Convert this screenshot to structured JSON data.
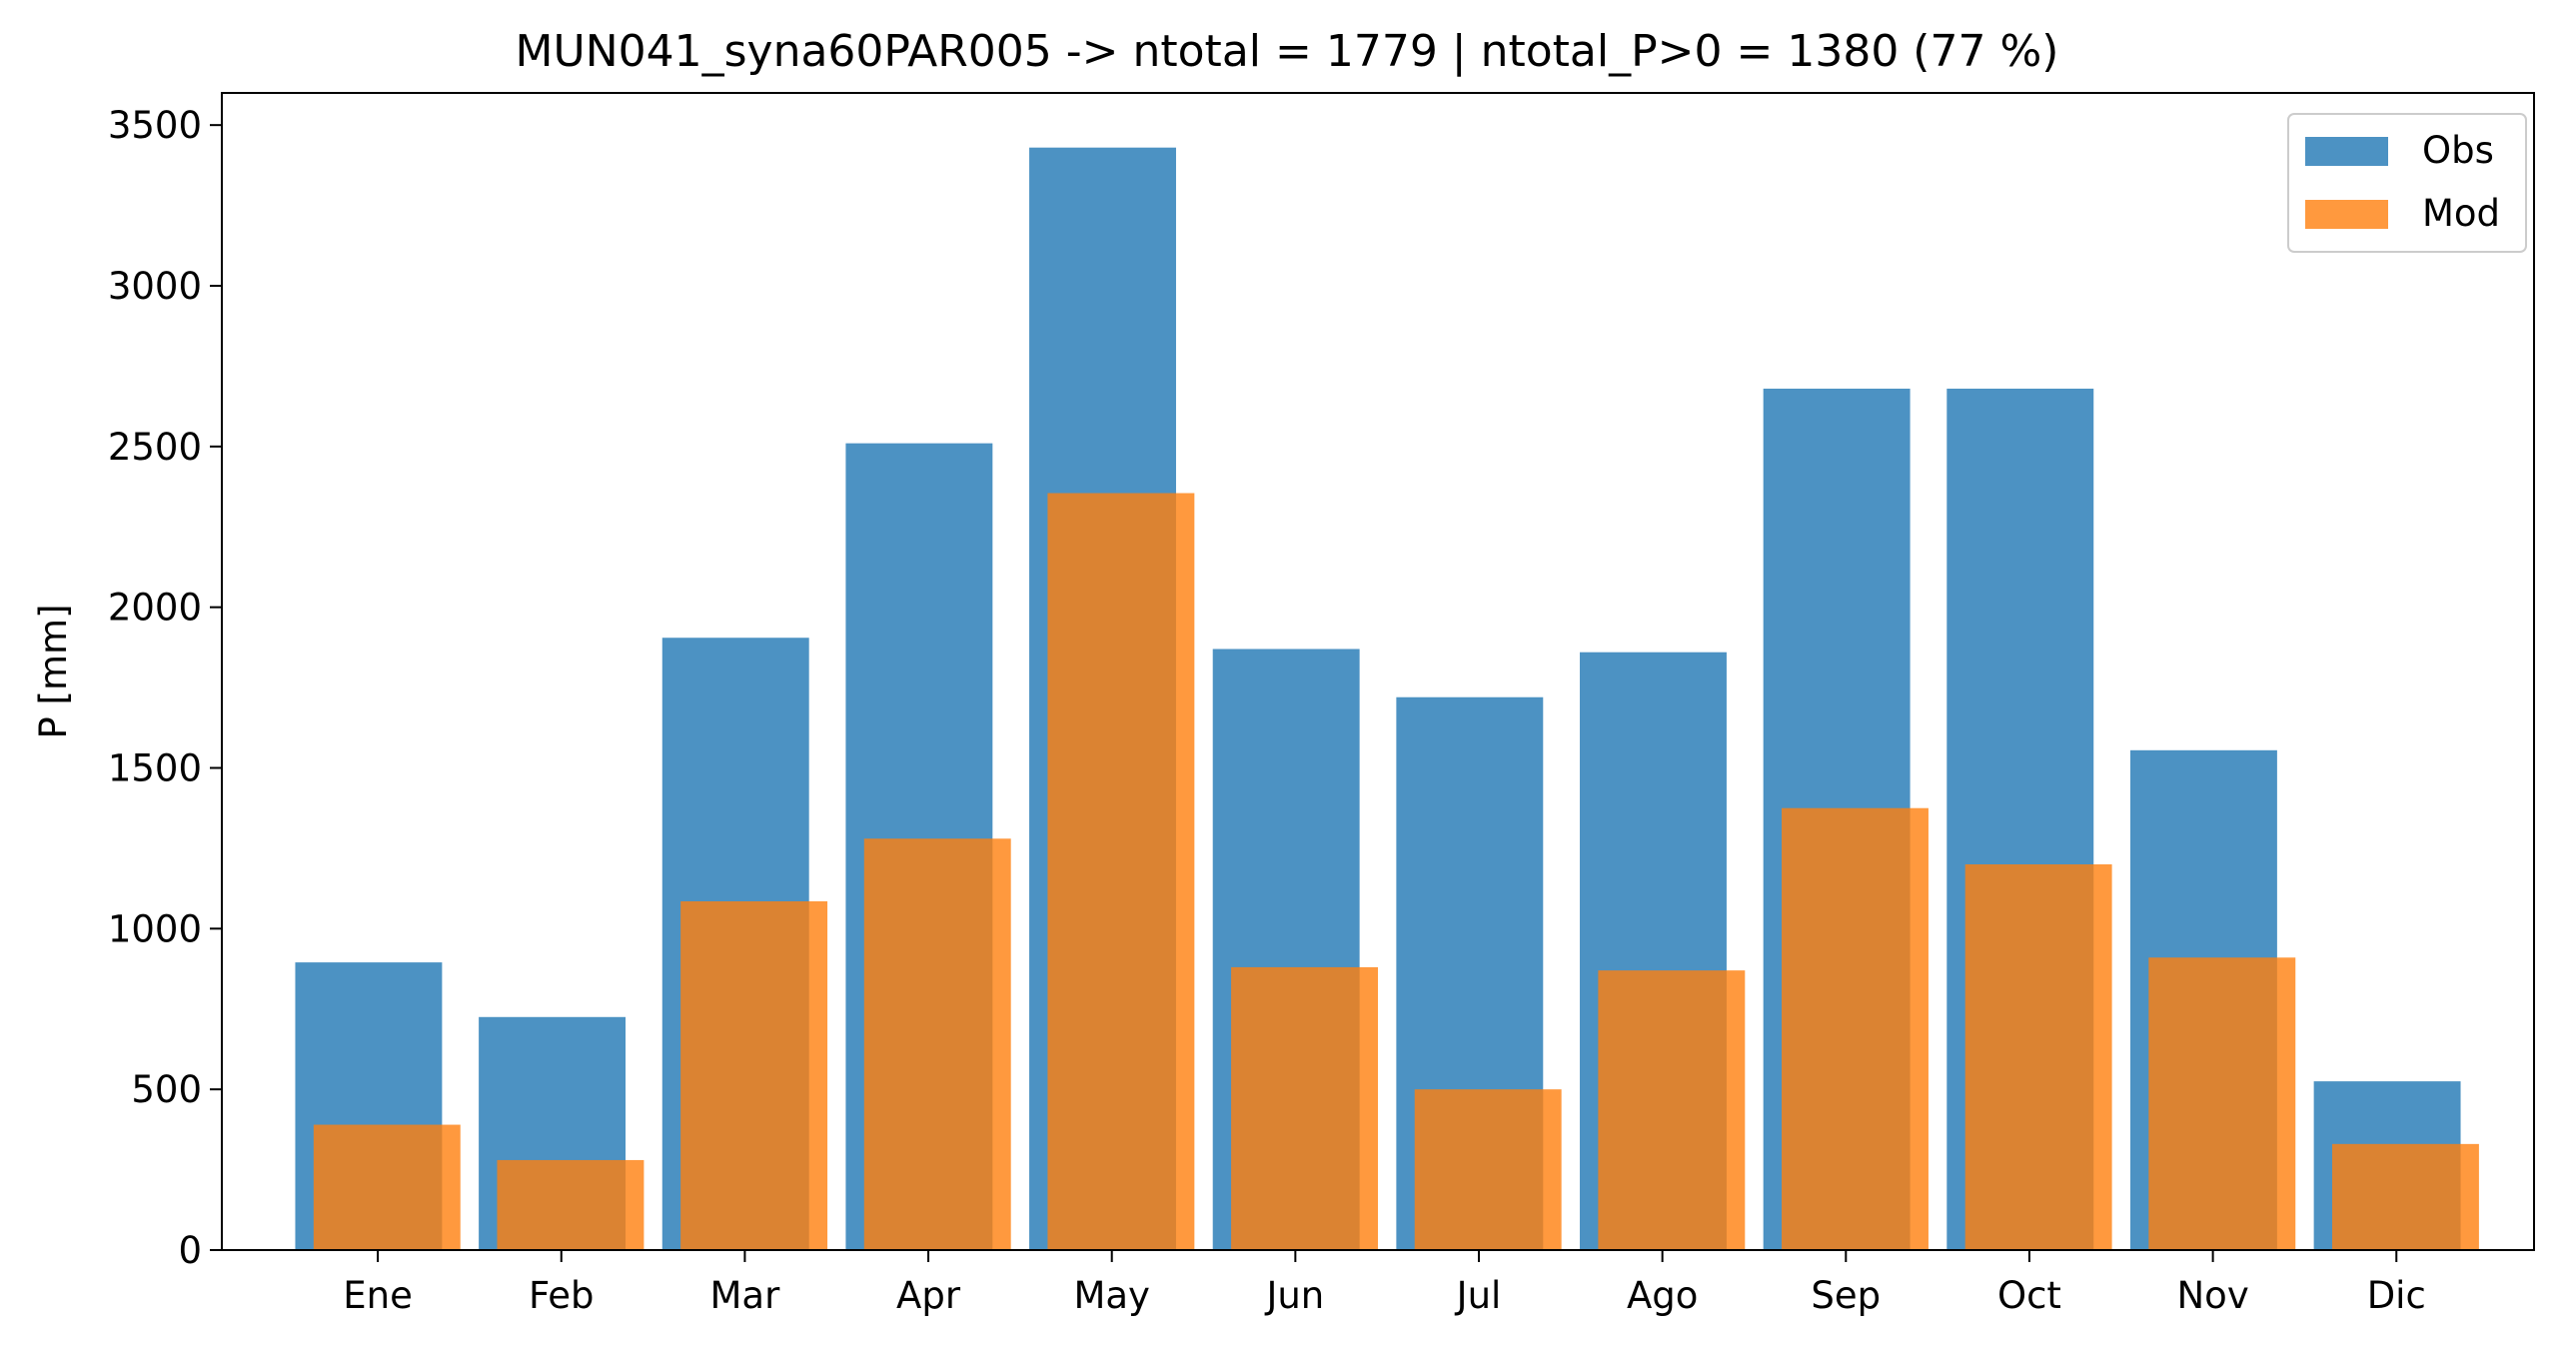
{
  "chart_data": {
    "type": "bar",
    "title": "MUN041_syna60PAR005 -> ntotal = 1779 | ntotal_P>0 = 1380 (77 %)",
    "xlabel": "",
    "ylabel": "P [mm]",
    "categories": [
      "Ene",
      "Feb",
      "Mar",
      "Apr",
      "May",
      "Jun",
      "Jul",
      "Ago",
      "Sep",
      "Oct",
      "Nov",
      "Dic"
    ],
    "series": [
      {
        "name": "Obs",
        "color": "#1f77b4",
        "values": [
          895,
          725,
          1905,
          2510,
          3430,
          1870,
          1720,
          1860,
          2680,
          2680,
          1555,
          525
        ]
      },
      {
        "name": "Mod",
        "color": "#ff7f0e",
        "values": [
          390,
          280,
          1085,
          1280,
          2355,
          880,
          500,
          870,
          1375,
          1200,
          910,
          330
        ]
      }
    ],
    "ylim": [
      0,
      3600
    ],
    "yticks": [
      0,
      500,
      1000,
      1500,
      2000,
      2500,
      3000,
      3500
    ],
    "grid": false,
    "legend_position": "top-right"
  }
}
